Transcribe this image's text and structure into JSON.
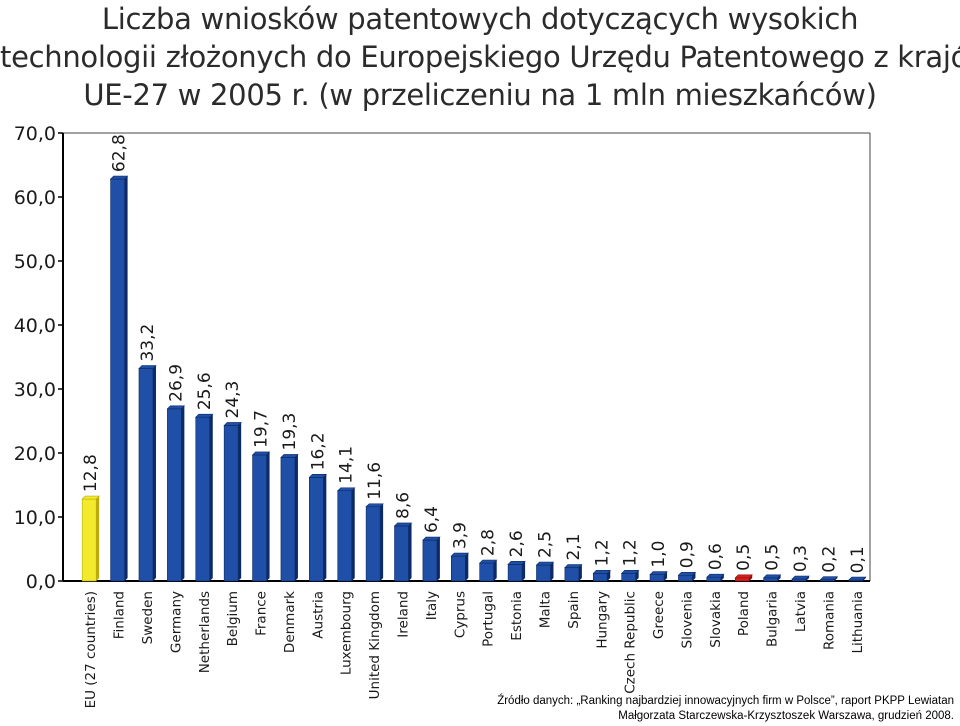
{
  "title": {
    "line1": "Liczba wniosków patentowych dotyczących wysokich",
    "line2": "technologii złożonych do Europejskiego Urzędu Patentowego z krajów",
    "line3": "UE-27 w 2005 r.  (w przeliczeniu na 1 mln mieszkańców)"
  },
  "source": {
    "line1": "Źródło danych: „Ranking najbardziej innowacyjnych firm w Polsce”, raport PKPP Lewiatan",
    "line2": "Małgorzata Starczewska-Krzysztoszek Warszawa, grudzień 2008."
  },
  "colors": {
    "bar": "#1f4fa6",
    "bar_dark": "#0c2a66",
    "highlight_eu": "#f2ea2a",
    "highlight_eu_dark": "#b7ad10",
    "highlight_poland": "#d62020",
    "highlight_poland_dark": "#8a1010",
    "axis": "#000000"
  },
  "chart_data": {
    "type": "bar",
    "ylim": [
      0,
      70
    ],
    "yticks": [
      "0,0",
      "10,0",
      "20,0",
      "30,0",
      "40,0",
      "50,0",
      "60,0",
      "70,0"
    ],
    "grid": false,
    "categories": [
      "EU (27 countries)",
      "Finland",
      "Sweden",
      "Germany",
      "Netherlands",
      "Belgium",
      "France",
      "Denmark",
      "Austria",
      "Luxembourg",
      "United Kingdom",
      "Ireland",
      "Italy",
      "Cyprus",
      "Portugal",
      "Estonia",
      "Malta",
      "Spain",
      "Hungary",
      "Czech Republic",
      "Greece",
      "Slovenia",
      "Slovakia",
      "Poland",
      "Bulgaria",
      "Latvia",
      "Romania",
      "Lithuania"
    ],
    "values": [
      12.8,
      62.8,
      33.2,
      26.9,
      25.6,
      24.3,
      19.7,
      19.3,
      16.2,
      14.1,
      11.6,
      8.6,
      6.4,
      3.9,
      2.8,
      2.6,
      2.5,
      2.1,
      1.2,
      1.2,
      1.0,
      0.9,
      0.6,
      0.5,
      0.5,
      0.3,
      0.2,
      0.1
    ],
    "labels": [
      "12,8",
      "62,8",
      "33,2",
      "26,9",
      "25,6",
      "24,3",
      "19,7",
      "19,3",
      "16,2",
      "14,1",
      "11,6",
      "8,6",
      "6,4",
      "3,9",
      "2,8",
      "2,6",
      "2,5",
      "2,1",
      "1,2",
      "1,2",
      "1,0",
      "0,9",
      "0,6",
      "0,5",
      "0,5",
      "0,3",
      "0,2",
      "0,1"
    ],
    "highlight": {
      "EU (27 countries)": "highlight_eu",
      "Poland": "highlight_poland"
    }
  }
}
